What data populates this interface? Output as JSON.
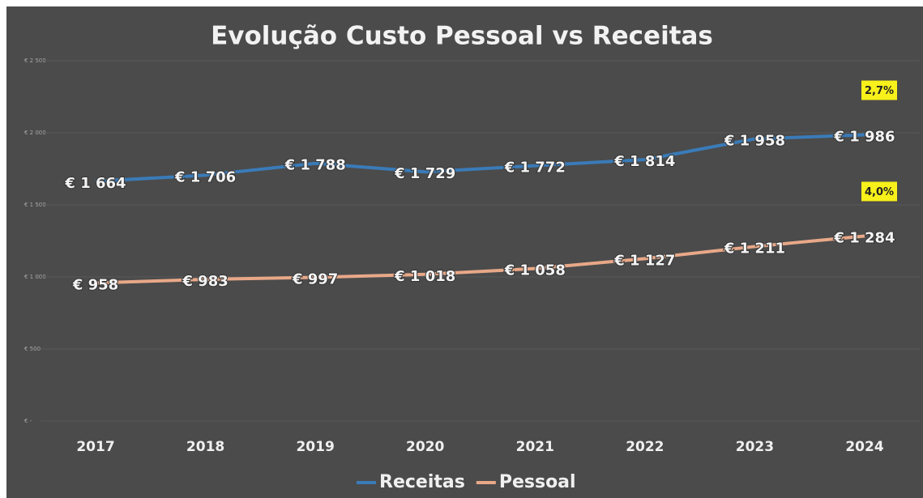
{
  "chart_data": {
    "type": "line",
    "title": "Evolução Custo Pessoal vs Receitas",
    "categories": [
      "2017",
      "2018",
      "2019",
      "2020",
      "2021",
      "2022",
      "2023",
      "2024"
    ],
    "series": [
      {
        "name": "Receitas",
        "color": "#3a7bb8",
        "values": [
          1664,
          1706,
          1788,
          1729,
          1772,
          1814,
          1958,
          1986
        ],
        "value_labels": [
          "€ 1 664",
          "€ 1 706",
          "€ 1 788",
          "€ 1 729",
          "€ 1 772",
          "€ 1 814",
          "€ 1 958",
          "€ 1 986"
        ],
        "annotation": "2,7%"
      },
      {
        "name": "Pessoal",
        "color": "#e8a888",
        "values": [
          958,
          983,
          997,
          1018,
          1058,
          1127,
          1211,
          1284
        ],
        "value_labels": [
          "€ 958",
          "€ 983",
          "€ 997",
          "€ 1 018",
          "€ 1 058",
          "€ 1 127",
          "€ 1 211",
          "€ 1 284"
        ],
        "annotation": "4,0%"
      }
    ],
    "ylim": [
      0,
      2500
    ],
    "yticks": [
      {
        "value": 0,
        "label": "€ -"
      },
      {
        "value": 500,
        "label": "€ 500"
      },
      {
        "value": 1000,
        "label": "€ 1 000"
      },
      {
        "value": 1500,
        "label": "€ 1 500"
      },
      {
        "value": 2000,
        "label": "€ 2 000"
      },
      {
        "value": 2500,
        "label": "€ 2 500"
      }
    ],
    "grid": true,
    "legend": "bottom"
  }
}
